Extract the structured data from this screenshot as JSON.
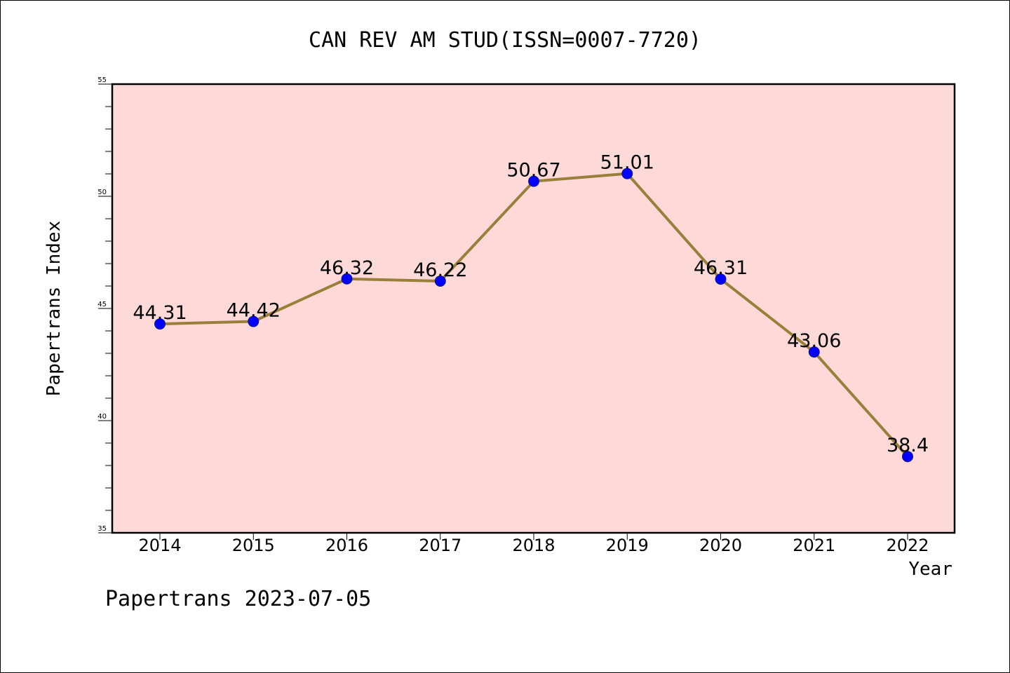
{
  "chart_data": {
    "type": "line",
    "title": "CAN REV AM STUD(ISSN=0007-7720)",
    "xlabel": "Year",
    "ylabel": "Papertrans Index",
    "categories": [
      "2014",
      "2015",
      "2016",
      "2017",
      "2018",
      "2019",
      "2020",
      "2021",
      "2022"
    ],
    "series": [
      {
        "values": [
          44.31,
          44.42,
          46.32,
          46.22,
          50.67,
          51.01,
          46.31,
          43.06,
          38.4
        ],
        "labels": [
          "44.31",
          "44.42",
          "46.32",
          "46.22",
          "50.67",
          "51.01",
          "46.31",
          "43.06",
          "38.4"
        ]
      }
    ],
    "ylim": [
      35,
      55
    ],
    "yticks": [
      "35",
      "40",
      "45",
      "50",
      "55"
    ],
    "grid": false,
    "colors": {
      "plot_background": "#fddad8",
      "line": "#9a7f3a",
      "marker": "#0000ff",
      "marker_edge": "#1a1a80"
    }
  },
  "footer": {
    "watermark": "Papertrans 2023-07-05"
  }
}
